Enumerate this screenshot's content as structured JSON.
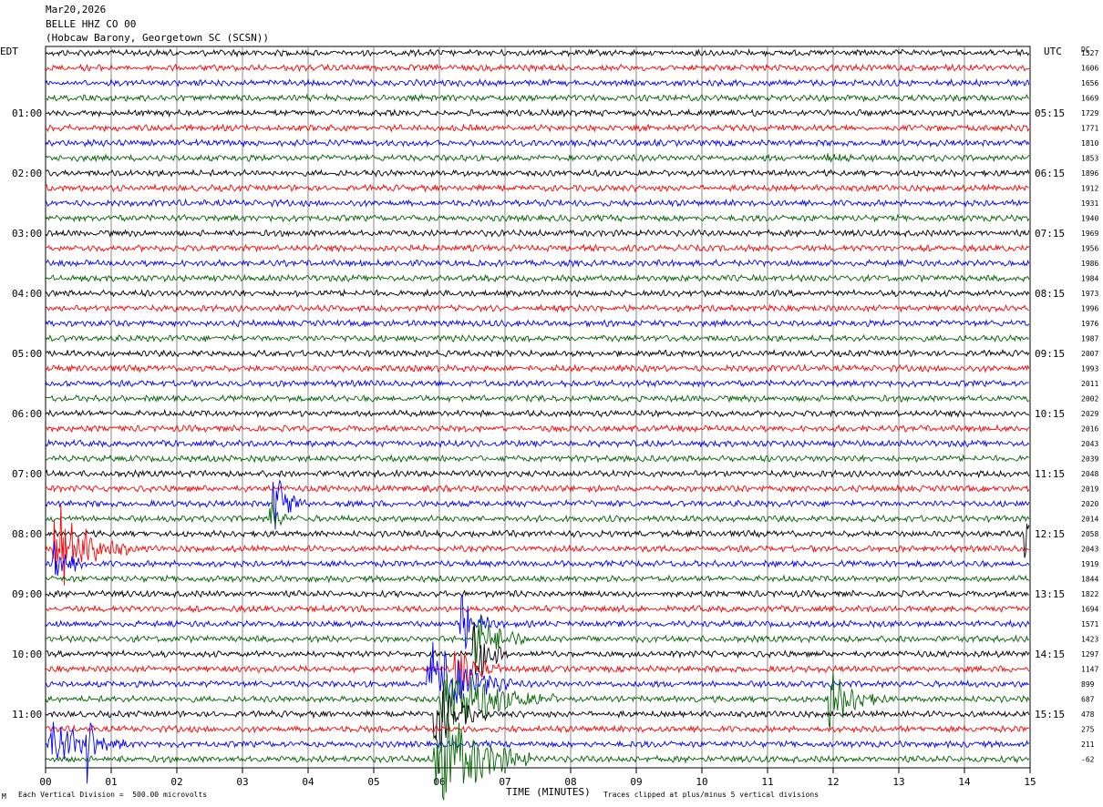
{
  "header": {
    "date": "Mar20,2026",
    "station": "BELLE HHZ CO 00",
    "location": "(Hobcaw Barony, Georgetown SC (SCSN))"
  },
  "left_axis_label": "EDT",
  "right_axis_label": "UTC",
  "dc_label": "DC",
  "footer": {
    "scale_note": "Each Vertical Division =  500.00 microvolts",
    "xlabel": "TIME (MINUTES)",
    "clip_note": "Traces clipped at plus/minus 5 vertical divisions",
    "corner_mark": "M"
  },
  "chart_data": {
    "type": "line",
    "title": "BELLE HHZ CO 00",
    "xlabel": "TIME (MINUTES)",
    "x_range": [
      0,
      15
    ],
    "x_ticks": [
      "00",
      "01",
      "02",
      "03",
      "04",
      "05",
      "06",
      "07",
      "08",
      "09",
      "10",
      "11",
      "12",
      "13",
      "14",
      "15"
    ],
    "rows": 48,
    "minutes_per_row": 15,
    "grid": true,
    "trace_colors": [
      "#000000",
      "#ff0000",
      "#0000ff",
      "#006400"
    ],
    "edt_labels": [
      {
        "row": 4,
        "text": "01:00"
      },
      {
        "row": 8,
        "text": "02:00"
      },
      {
        "row": 12,
        "text": "03:00"
      },
      {
        "row": 16,
        "text": "04:00"
      },
      {
        "row": 20,
        "text": "05:00"
      },
      {
        "row": 24,
        "text": "06:00"
      },
      {
        "row": 28,
        "text": "07:00"
      },
      {
        "row": 32,
        "text": "08:00"
      },
      {
        "row": 36,
        "text": "09:00"
      },
      {
        "row": 40,
        "text": "10:00"
      },
      {
        "row": 44,
        "text": "11:00"
      }
    ],
    "utc_labels": [
      {
        "row": 4,
        "text": "05:15"
      },
      {
        "row": 8,
        "text": "06:15"
      },
      {
        "row": 12,
        "text": "07:15"
      },
      {
        "row": 16,
        "text": "08:15"
      },
      {
        "row": 20,
        "text": "09:15"
      },
      {
        "row": 24,
        "text": "10:15"
      },
      {
        "row": 28,
        "text": "11:15"
      },
      {
        "row": 32,
        "text": "12:15"
      },
      {
        "row": 36,
        "text": "13:15"
      },
      {
        "row": 40,
        "text": "14:15"
      },
      {
        "row": 44,
        "text": "15:15"
      }
    ],
    "dc_offsets": [
      "1527",
      "1606",
      "1656",
      "1669",
      "1729",
      "1771",
      "1810",
      "1853",
      "1896",
      "1912",
      "1931",
      "1940",
      "1969",
      "1956",
      "1986",
      "1984",
      "1973",
      "1996",
      "1976",
      "1987",
      "2007",
      "1993",
      "2011",
      "2002",
      "2029",
      "2016",
      "2043",
      "2039",
      "2048",
      "2019",
      "2020",
      "2014",
      "2058",
      "2043",
      "1919",
      "1844",
      "1822",
      "1694",
      "1571",
      "1423",
      "1297",
      "1147",
      "899",
      "687",
      "478",
      "275",
      "211",
      "-62"
    ],
    "events": [
      {
        "row": 7,
        "minute": 11.9,
        "duration": 0.5,
        "amplitude": 0.6,
        "note": "drift segment"
      },
      {
        "row": 30,
        "minute": 3.45,
        "duration": 0.5,
        "amplitude": 2.5
      },
      {
        "row": 31,
        "minute": 3.4,
        "duration": 0.3,
        "amplitude": 1.5
      },
      {
        "row": 33,
        "minute": 0.1,
        "duration": 1.2,
        "amplitude": 3.0
      },
      {
        "row": 34,
        "minute": 0.1,
        "duration": 0.6,
        "amplitude": 1.4
      },
      {
        "row": 32,
        "minute": 14.9,
        "duration": 0.2,
        "amplitude": 1.5
      },
      {
        "row": 38,
        "minute": 6.3,
        "duration": 0.6,
        "amplitude": 1.8
      },
      {
        "row": 39,
        "minute": 6.5,
        "duration": 0.8,
        "amplitude": 2.2
      },
      {
        "row": 40,
        "minute": 6.5,
        "duration": 0.6,
        "amplitude": 2.5
      },
      {
        "row": 41,
        "minute": 6.2,
        "duration": 0.8,
        "amplitude": 2.0
      },
      {
        "row": 42,
        "minute": 5.8,
        "duration": 1.3,
        "amplitude": 3.5
      },
      {
        "row": 43,
        "minute": 6.0,
        "duration": 1.8,
        "amplitude": 2.5
      },
      {
        "row": 43,
        "minute": 11.9,
        "duration": 0.9,
        "amplitude": 1.8
      },
      {
        "row": 44,
        "minute": 5.9,
        "duration": 0.8,
        "amplitude": 2.6
      },
      {
        "row": 46,
        "minute": 0.0,
        "duration": 1.3,
        "amplitude": 1.6
      },
      {
        "row": 46,
        "minute": 0.6,
        "duration": 0.2,
        "amplitude": 5.0
      },
      {
        "row": 47,
        "minute": 5.9,
        "duration": 1.5,
        "amplitude": 4.0
      }
    ]
  }
}
